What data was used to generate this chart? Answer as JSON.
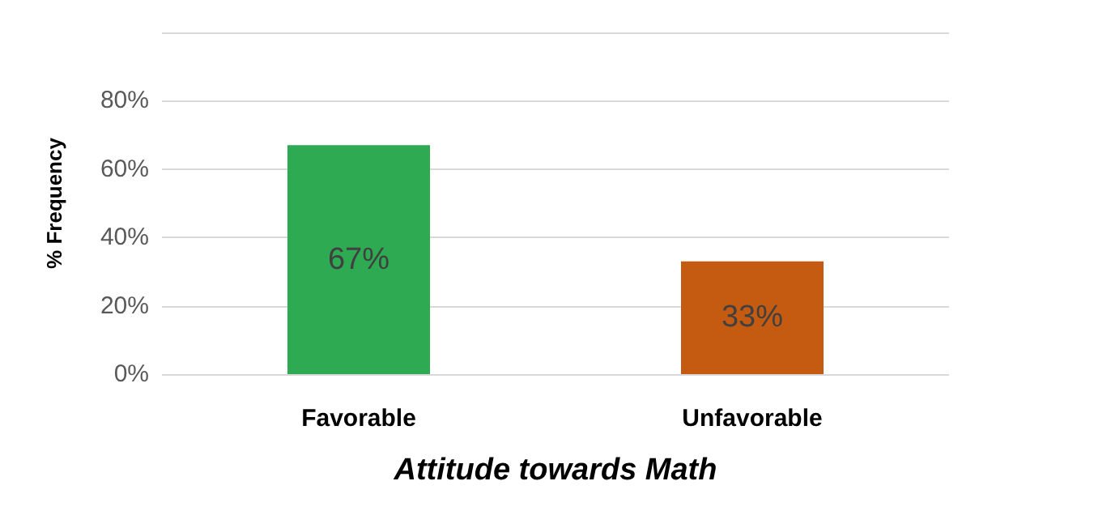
{
  "chart_data": {
    "type": "bar",
    "xlabel": "Attitude towards Math",
    "ylabel": "% Frequency",
    "categories": [
      "Favorable",
      "Unfavorable"
    ],
    "values": [
      67,
      33
    ],
    "colors": [
      "#2eaa52",
      "#c55a11"
    ],
    "value_labels": [
      "67%",
      "33%"
    ],
    "ylim": [
      0,
      100
    ],
    "yticks": [
      {
        "value": 0,
        "label": "0%"
      },
      {
        "value": 20,
        "label": "20%"
      },
      {
        "value": 40,
        "label": "40%"
      },
      {
        "value": 60,
        "label": "60%"
      },
      {
        "value": 80,
        "label": "80%"
      },
      {
        "value": 100,
        "label": null
      }
    ],
    "grid": "y"
  }
}
